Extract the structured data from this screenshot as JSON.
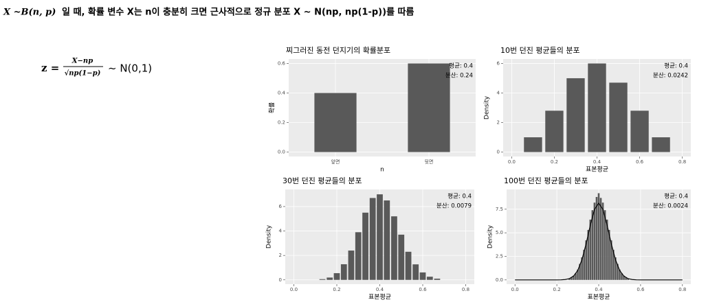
{
  "header": {
    "title_math": "X ~B(n, p)",
    "title_text": "일 때, 확률 변수 X는 n이 충분히 크면 근사적으로 정규 분포 X ~ N(np, np(1-p))를 따름"
  },
  "formula": {
    "lhs": "z =",
    "numerator": "X−np",
    "denominator": "√np(1−p)",
    "rhs": "~ N(0,1)"
  },
  "chart_data": [
    {
      "type": "bar",
      "title": "찌그러진 동전 던지기의 확률분포",
      "categories": [
        "앞면",
        "뒷면"
      ],
      "values": [
        0.4,
        0.6
      ],
      "color": "#595959",
      "xlabel": "n",
      "ylabel": "확률",
      "ylim": [
        -0.03,
        0.63
      ],
      "yticks": [
        {
          "value": 0,
          "label": "0.0"
        },
        0.2,
        0.4,
        0.6
      ],
      "grid": true,
      "annotations": [
        "평균: 0.4",
        "분산: 0.24"
      ]
    },
    {
      "type": "bar",
      "title": "10번 던진 평균들의 분포",
      "x": [
        0.1,
        0.2,
        0.3,
        0.4,
        0.5,
        0.6,
        0.7
      ],
      "values": [
        1.0,
        2.8,
        5.0,
        6.0,
        4.7,
        2.8,
        1.0
      ],
      "color": "#595959",
      "xlabel": "표본평균",
      "ylabel": "Density",
      "xlim": [
        -0.04,
        0.84
      ],
      "ylim": [
        -0.3,
        6.3
      ],
      "xticks": [
        {
          "value": 0,
          "label": "0.0"
        },
        0.2,
        0.4,
        0.6,
        0.8
      ],
      "yticks": [
        0,
        2,
        4,
        6
      ],
      "grid": true,
      "annotations": [
        "평균: 0.4",
        "분산: 0.0242"
      ]
    },
    {
      "type": "bar",
      "title": "30번 던진 평균들의 분포",
      "x": [
        0.133,
        0.167,
        0.2,
        0.233,
        0.267,
        0.3,
        0.333,
        0.367,
        0.4,
        0.433,
        0.467,
        0.5,
        0.533,
        0.567,
        0.6,
        0.633,
        0.667
      ],
      "values": [
        0.06,
        0.19,
        0.55,
        1.28,
        2.4,
        3.9,
        5.5,
        6.7,
        7.0,
        6.5,
        5.2,
        3.7,
        2.3,
        1.27,
        0.61,
        0.26,
        0.1
      ],
      "color": "#595959",
      "xlabel": "표본평균",
      "ylabel": "Density",
      "xlim": [
        -0.04,
        0.84
      ],
      "ylim": [
        -0.35,
        7.4
      ],
      "xticks": [
        {
          "value": 0,
          "label": "0.0"
        },
        0.2,
        0.4,
        0.6,
        0.8
      ],
      "yticks": [
        0,
        2,
        4,
        6
      ],
      "grid": true,
      "annotations": [
        "평균: 0.4",
        "분산: 0.0079"
      ]
    },
    {
      "type": "bar",
      "title": "100번 던진 평균들의 분포",
      "x": [
        0.26,
        0.27,
        0.28,
        0.29,
        0.3,
        0.31,
        0.32,
        0.33,
        0.34,
        0.35,
        0.36,
        0.37,
        0.38,
        0.39,
        0.4,
        0.41,
        0.42,
        0.43,
        0.44,
        0.45,
        0.46,
        0.47,
        0.48,
        0.49,
        0.5,
        0.51,
        0.52,
        0.53,
        0.54
      ],
      "values": [
        0.15,
        0.26,
        0.45,
        0.7,
        1.1,
        1.7,
        2.4,
        3.2,
        4.2,
        5.3,
        6.4,
        7.4,
        8.2,
        8.8,
        9.2,
        8.7,
        8.2,
        7.4,
        6.4,
        5.3,
        4.2,
        3.2,
        2.4,
        1.7,
        1.1,
        0.7,
        0.45,
        0.26,
        0.15
      ],
      "color": "#595959",
      "overlay": {
        "type": "line",
        "color": "#000000",
        "x": [
          0,
          0.1,
          0.2,
          0.22,
          0.24,
          0.26,
          0.28,
          0.3,
          0.32,
          0.34,
          0.36,
          0.38,
          0.4,
          0.42,
          0.44,
          0.46,
          0.48,
          0.5,
          0.52,
          0.54,
          0.56,
          0.58,
          0.6,
          0.7,
          0.8
        ],
        "values": [
          0,
          0,
          0,
          0.01,
          0.04,
          0.14,
          0.41,
          1.01,
          2.15,
          3.85,
          5.83,
          7.49,
          8.14,
          7.49,
          5.83,
          3.85,
          2.15,
          1.01,
          0.41,
          0.14,
          0.04,
          0.01,
          0,
          0,
          0
        ]
      },
      "xlabel": "표본평균",
      "ylabel": "Density",
      "xlim": [
        -0.04,
        0.84
      ],
      "ylim": [
        -0.45,
        9.6
      ],
      "xticks": [
        {
          "value": 0,
          "label": "0.0"
        },
        0.2,
        0.4,
        0.6,
        0.8
      ],
      "yticks": [
        {
          "value": 0,
          "label": "0.0"
        },
        2.5,
        {
          "value": 5,
          "label": "5.0"
        },
        7.5
      ],
      "grid": true,
      "annotations": [
        "평균: 0.4",
        "분산: 0.0024"
      ]
    }
  ]
}
